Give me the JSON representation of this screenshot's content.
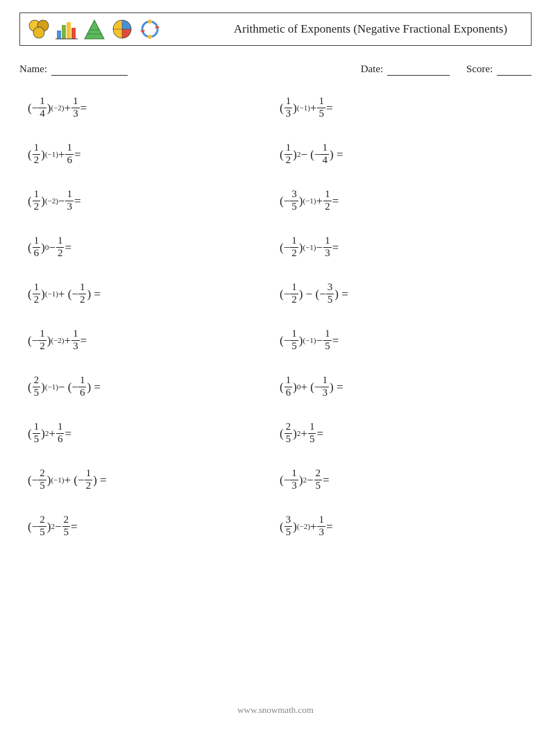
{
  "header": {
    "title": "Arithmetic of Exponents (Negative Fractional Exponents)"
  },
  "meta": {
    "name_label": "Name:",
    "date_label": "Date:",
    "score_label": "Score:"
  },
  "icon_colors": {
    "circle1": "#f4c430",
    "circle2": "#d4a017",
    "circle3": "#e8b923",
    "bar1": "#4a90d9",
    "bar2": "#7cb342",
    "bar3": "#f4c430",
    "bar4": "#e24a3b",
    "tri_fill": "#5cb85c",
    "tri_stroke": "#2e7d32",
    "pie1": "#f4c430",
    "pie2": "#4a90d9",
    "pie3": "#e24a3b",
    "ring": "#4a90d9",
    "ring_accent": "#f4c430"
  },
  "problems": [
    {
      "base_neg": true,
      "base_num": "1",
      "base_den": "4",
      "exp": "(−2)",
      "op": "+",
      "t2_neg": false,
      "t2_num": "1",
      "t2_den": "3"
    },
    {
      "base_neg": false,
      "base_num": "1",
      "base_den": "3",
      "exp": "(−1)",
      "op": "+",
      "t2_neg": false,
      "t2_num": "1",
      "t2_den": "5"
    },
    {
      "base_neg": false,
      "base_num": "1",
      "base_den": "2",
      "exp": "(−1)",
      "op": "+",
      "t2_neg": false,
      "t2_num": "1",
      "t2_den": "6"
    },
    {
      "base_neg": false,
      "base_num": "1",
      "base_den": "2",
      "exp": "2",
      "op": "−",
      "t2_neg": true,
      "t2_num": "1",
      "t2_den": "4"
    },
    {
      "base_neg": false,
      "base_num": "1",
      "base_den": "2",
      "exp": "(−2)",
      "op": "−",
      "t2_neg": false,
      "t2_num": "1",
      "t2_den": "3"
    },
    {
      "base_neg": true,
      "base_num": "3",
      "base_den": "5",
      "exp": "(−1)",
      "op": "+",
      "t2_neg": false,
      "t2_num": "1",
      "t2_den": "2"
    },
    {
      "base_neg": false,
      "base_num": "1",
      "base_den": "6",
      "exp": "0",
      "op": "−",
      "t2_neg": false,
      "t2_num": "1",
      "t2_den": "2"
    },
    {
      "base_neg": true,
      "base_num": "1",
      "base_den": "2",
      "exp": "(−1)",
      "op": "−",
      "t2_neg": false,
      "t2_num": "1",
      "t2_den": "3"
    },
    {
      "base_neg": false,
      "base_num": "1",
      "base_den": "2",
      "exp": "(−1)",
      "op": "+",
      "t2_neg": true,
      "t2_num": "1",
      "t2_den": "2"
    },
    {
      "base_neg": true,
      "base_num": "1",
      "base_den": "2",
      "exp": "",
      "op": "−",
      "t2_neg": true,
      "t2_num": "3",
      "t2_den": "5"
    },
    {
      "base_neg": true,
      "base_num": "1",
      "base_den": "2",
      "exp": "(−2)",
      "op": "+",
      "t2_neg": false,
      "t2_num": "1",
      "t2_den": "3"
    },
    {
      "base_neg": true,
      "base_num": "1",
      "base_den": "5",
      "exp": "(−1)",
      "op": "−",
      "t2_neg": false,
      "t2_num": "1",
      "t2_den": "5"
    },
    {
      "base_neg": false,
      "base_num": "2",
      "base_den": "5",
      "exp": "(−1)",
      "op": "−",
      "t2_neg": true,
      "t2_num": "1",
      "t2_den": "6"
    },
    {
      "base_neg": false,
      "base_num": "1",
      "base_den": "6",
      "exp": "0",
      "op": "+",
      "t2_neg": true,
      "t2_num": "1",
      "t2_den": "3"
    },
    {
      "base_neg": false,
      "base_num": "1",
      "base_den": "5",
      "exp": "2",
      "op": "+",
      "t2_neg": false,
      "t2_num": "1",
      "t2_den": "6"
    },
    {
      "base_neg": false,
      "base_num": "2",
      "base_den": "5",
      "exp": "2",
      "op": "+",
      "t2_neg": false,
      "t2_num": "1",
      "t2_den": "5"
    },
    {
      "base_neg": true,
      "base_num": "2",
      "base_den": "5",
      "exp": "(−1)",
      "op": "+",
      "t2_neg": true,
      "t2_num": "1",
      "t2_den": "2"
    },
    {
      "base_neg": true,
      "base_num": "1",
      "base_den": "3",
      "exp": "2",
      "op": "−",
      "t2_neg": false,
      "t2_num": "2",
      "t2_den": "5"
    },
    {
      "base_neg": true,
      "base_num": "2",
      "base_den": "5",
      "exp": "2",
      "op": "−",
      "t2_neg": false,
      "t2_num": "2",
      "t2_den": "5"
    },
    {
      "base_neg": false,
      "base_num": "3",
      "base_den": "5",
      "exp": "(−2)",
      "op": "+",
      "t2_neg": false,
      "t2_num": "1",
      "t2_den": "3"
    }
  ],
  "footer": "www.snowmath.com"
}
